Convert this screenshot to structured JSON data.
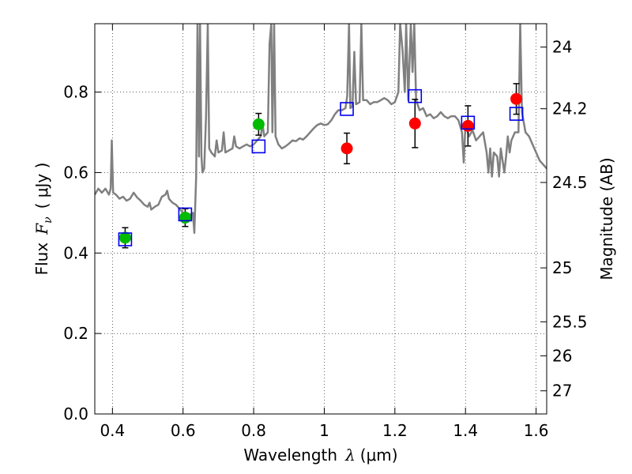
{
  "chart_data": {
    "type": "scatter",
    "xlabel": {
      "prefix": "Wavelength",
      "symbol": "λ",
      "unit": "(μm)"
    },
    "ylabel": {
      "prefix": "Flux",
      "symbol": "F",
      "subscript": "ν",
      "unit": "( μJy )"
    },
    "y2label": "Magnitude (AB)",
    "xlim": [
      0.35,
      1.63
    ],
    "ylim": [
      0.0,
      0.97
    ],
    "grid": true,
    "x_ticks": [
      {
        "value": 0.4,
        "label": "0.4"
      },
      {
        "value": 0.6,
        "label": "0.6"
      },
      {
        "value": 0.8,
        "label": "0.8"
      },
      {
        "value": 1.0,
        "label": "1"
      },
      {
        "value": 1.2,
        "label": "1.2"
      },
      {
        "value": 1.4,
        "label": "1.4"
      },
      {
        "value": 1.6,
        "label": "1.6"
      }
    ],
    "y_ticks": [
      {
        "value": 0.0,
        "label": "0.0"
      },
      {
        "value": 0.2,
        "label": "0.2"
      },
      {
        "value": 0.4,
        "label": "0.4"
      },
      {
        "value": 0.6,
        "label": "0.6"
      },
      {
        "value": 0.8,
        "label": "0.8"
      }
    ],
    "y2_ticks": [
      {
        "flux": 0.912,
        "label": "24"
      },
      {
        "flux": 0.7586,
        "label": "24.2"
      },
      {
        "flux": 0.5754,
        "label": "24.5"
      },
      {
        "flux": 0.3631,
        "label": "25"
      },
      {
        "flux": 0.2291,
        "label": "25.5"
      },
      {
        "flux": 0.1445,
        "label": "26"
      },
      {
        "flux": 0.0575,
        "label": "27"
      }
    ],
    "series": [
      {
        "kind": "line",
        "color": "#808080",
        "points": [
          [
            0.35,
            0.545
          ],
          [
            0.36,
            0.56
          ],
          [
            0.37,
            0.55
          ],
          [
            0.38,
            0.56
          ],
          [
            0.39,
            0.545
          ],
          [
            0.395,
            0.56
          ],
          [
            0.398,
            0.68
          ],
          [
            0.402,
            0.55
          ],
          [
            0.41,
            0.545
          ],
          [
            0.42,
            0.535
          ],
          [
            0.43,
            0.54
          ],
          [
            0.44,
            0.53
          ],
          [
            0.45,
            0.535
          ],
          [
            0.46,
            0.55
          ],
          [
            0.47,
            0.538
          ],
          [
            0.48,
            0.53
          ],
          [
            0.49,
            0.52
          ],
          [
            0.5,
            0.515
          ],
          [
            0.505,
            0.525
          ],
          [
            0.51,
            0.508
          ],
          [
            0.52,
            0.515
          ],
          [
            0.53,
            0.52
          ],
          [
            0.54,
            0.54
          ],
          [
            0.55,
            0.545
          ],
          [
            0.555,
            0.555
          ],
          [
            0.56,
            0.535
          ],
          [
            0.57,
            0.525
          ],
          [
            0.58,
            0.52
          ],
          [
            0.59,
            0.51
          ],
          [
            0.6,
            0.5
          ],
          [
            0.61,
            0.5
          ],
          [
            0.62,
            0.495
          ],
          [
            0.628,
            0.5
          ],
          [
            0.632,
            0.45
          ],
          [
            0.637,
            0.59
          ],
          [
            0.641,
            0.97
          ],
          [
            0.645,
            0.64
          ],
          [
            0.648,
            0.97
          ],
          [
            0.652,
            0.64
          ],
          [
            0.655,
            0.6
          ],
          [
            0.66,
            0.61
          ],
          [
            0.665,
            0.74
          ],
          [
            0.67,
            0.97
          ],
          [
            0.674,
            0.66
          ],
          [
            0.68,
            0.65
          ],
          [
            0.69,
            0.64
          ],
          [
            0.695,
            0.68
          ],
          [
            0.7,
            0.65
          ],
          [
            0.71,
            0.655
          ],
          [
            0.715,
            0.7
          ],
          [
            0.72,
            0.65
          ],
          [
            0.73,
            0.655
          ],
          [
            0.74,
            0.66
          ],
          [
            0.745,
            0.69
          ],
          [
            0.75,
            0.665
          ],
          [
            0.76,
            0.66
          ],
          [
            0.77,
            0.665
          ],
          [
            0.78,
            0.67
          ],
          [
            0.79,
            0.665
          ],
          [
            0.8,
            0.67
          ],
          [
            0.81,
            0.68
          ],
          [
            0.82,
            0.69
          ],
          [
            0.825,
            0.72
          ],
          [
            0.83,
            0.69
          ],
          [
            0.84,
            0.7
          ],
          [
            0.845,
            0.92
          ],
          [
            0.85,
            0.97
          ],
          [
            0.853,
            0.7
          ],
          [
            0.858,
            0.97
          ],
          [
            0.862,
            0.69
          ],
          [
            0.87,
            0.67
          ],
          [
            0.88,
            0.66
          ],
          [
            0.89,
            0.665
          ],
          [
            0.9,
            0.672
          ],
          [
            0.91,
            0.68
          ],
          [
            0.92,
            0.678
          ],
          [
            0.93,
            0.685
          ],
          [
            0.94,
            0.682
          ],
          [
            0.95,
            0.69
          ],
          [
            0.96,
            0.7
          ],
          [
            0.97,
            0.71
          ],
          [
            0.98,
            0.718
          ],
          [
            0.99,
            0.722
          ],
          [
            1.0,
            0.718
          ],
          [
            1.01,
            0.72
          ],
          [
            1.02,
            0.73
          ],
          [
            1.03,
            0.745
          ],
          [
            1.04,
            0.755
          ],
          [
            1.05,
            0.755
          ],
          [
            1.06,
            0.76
          ],
          [
            1.065,
            0.79
          ],
          [
            1.07,
            0.97
          ],
          [
            1.074,
            0.76
          ],
          [
            1.08,
            0.765
          ],
          [
            1.085,
            0.9
          ],
          [
            1.09,
            0.77
          ],
          [
            1.1,
            0.775
          ],
          [
            1.105,
            0.97
          ],
          [
            1.11,
            0.78
          ],
          [
            1.12,
            0.78
          ],
          [
            1.13,
            0.77
          ],
          [
            1.14,
            0.775
          ],
          [
            1.15,
            0.775
          ],
          [
            1.16,
            0.78
          ],
          [
            1.17,
            0.785
          ],
          [
            1.18,
            0.78
          ],
          [
            1.19,
            0.77
          ],
          [
            1.2,
            0.775
          ],
          [
            1.21,
            0.8
          ],
          [
            1.215,
            0.97
          ],
          [
            1.222,
            0.9
          ],
          [
            1.228,
            0.8
          ],
          [
            1.232,
            0.97
          ],
          [
            1.238,
            0.78
          ],
          [
            1.245,
            0.97
          ],
          [
            1.25,
            0.85
          ],
          [
            1.255,
            0.97
          ],
          [
            1.26,
            0.78
          ],
          [
            1.27,
            0.755
          ],
          [
            1.28,
            0.76
          ],
          [
            1.29,
            0.74
          ],
          [
            1.3,
            0.745
          ],
          [
            1.31,
            0.735
          ],
          [
            1.32,
            0.74
          ],
          [
            1.33,
            0.75
          ],
          [
            1.34,
            0.74
          ],
          [
            1.35,
            0.735
          ],
          [
            1.36,
            0.74
          ],
          [
            1.37,
            0.74
          ],
          [
            1.38,
            0.73
          ],
          [
            1.39,
            0.7
          ],
          [
            1.395,
            0.625
          ],
          [
            1.4,
            0.72
          ],
          [
            1.41,
            0.69
          ],
          [
            1.42,
            0.705
          ],
          [
            1.43,
            0.68
          ],
          [
            1.44,
            0.69
          ],
          [
            1.45,
            0.7
          ],
          [
            1.46,
            0.65
          ],
          [
            1.465,
            0.6
          ],
          [
            1.47,
            0.66
          ],
          [
            1.475,
            0.59
          ],
          [
            1.48,
            0.65
          ],
          [
            1.49,
            0.64
          ],
          [
            1.495,
            0.59
          ],
          [
            1.5,
            0.66
          ],
          [
            1.51,
            0.6
          ],
          [
            1.515,
            0.64
          ],
          [
            1.52,
            0.69
          ],
          [
            1.525,
            0.65
          ],
          [
            1.53,
            0.68
          ],
          [
            1.54,
            0.7
          ],
          [
            1.55,
            0.7
          ],
          [
            1.555,
            0.97
          ],
          [
            1.56,
            0.75
          ],
          [
            1.57,
            0.7
          ],
          [
            1.58,
            0.69
          ],
          [
            1.59,
            0.67
          ],
          [
            1.6,
            0.65
          ],
          [
            1.61,
            0.63
          ],
          [
            1.62,
            0.62
          ],
          [
            1.63,
            0.61
          ]
        ]
      },
      {
        "kind": "points",
        "marker": "circle",
        "color": "#00bb00",
        "points": [
          {
            "x": 0.436,
            "y": 0.438,
            "err": 0.025
          },
          {
            "x": 0.606,
            "y": 0.488,
            "err": 0.022
          },
          {
            "x": 0.814,
            "y": 0.72,
            "err": 0.027
          }
        ]
      },
      {
        "kind": "points",
        "marker": "circle",
        "color": "#ff0000",
        "points": [
          {
            "x": 1.064,
            "y": 0.66,
            "err": 0.038
          },
          {
            "x": 1.257,
            "y": 0.722,
            "err": 0.06
          },
          {
            "x": 1.407,
            "y": 0.716,
            "err": 0.05
          },
          {
            "x": 1.544,
            "y": 0.783,
            "err": 0.038
          }
        ]
      },
      {
        "kind": "points",
        "marker": "open-square",
        "color": "#0000ee",
        "points": [
          {
            "x": 0.436,
            "y": 0.434
          },
          {
            "x": 0.606,
            "y": 0.496
          },
          {
            "x": 0.814,
            "y": 0.665
          },
          {
            "x": 1.064,
            "y": 0.758
          },
          {
            "x": 1.257,
            "y": 0.79
          },
          {
            "x": 1.407,
            "y": 0.724
          },
          {
            "x": 1.544,
            "y": 0.746
          }
        ]
      }
    ]
  }
}
